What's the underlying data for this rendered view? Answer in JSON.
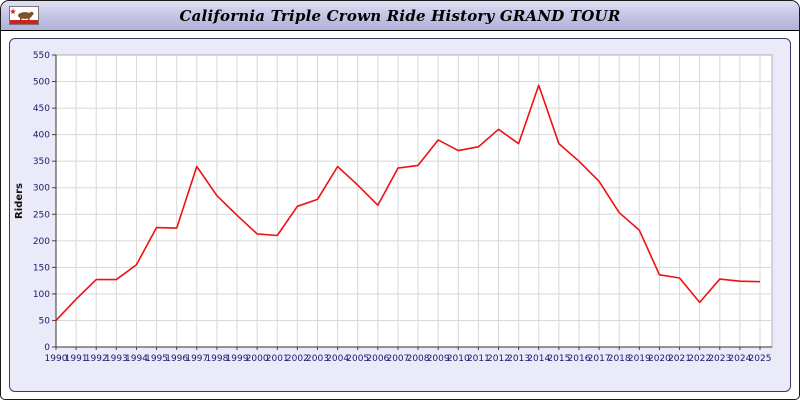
{
  "header": {
    "title": "California Triple Crown Ride History GRAND TOUR"
  },
  "colors": {
    "titlebar_bg": "#c2c2e4",
    "panel_bg": "#eaeaf8",
    "plot_bg": "#ffffff",
    "gridline": "#d8d8d8",
    "axis_label": "#1a1a6e",
    "line": "#ee1111"
  },
  "chart_data": {
    "type": "line",
    "title": "California Triple Crown Ride History GRAND TOUR",
    "xlabel": "",
    "ylabel": "Riders",
    "ylim": [
      0,
      550
    ],
    "ytick_step": 50,
    "grid": true,
    "legend": "none",
    "line_color": "#ee1111",
    "categories": [
      1990,
      1991,
      1992,
      1993,
      1994,
      1995,
      1996,
      1997,
      1998,
      1999,
      2000,
      2001,
      2002,
      2003,
      2004,
      2005,
      2006,
      2007,
      2008,
      2009,
      2010,
      2011,
      2012,
      2013,
      2014,
      2015,
      2016,
      2017,
      2018,
      2019,
      2020,
      2021,
      2022,
      2023,
      2024,
      2025
    ],
    "series": [
      {
        "name": "Riders",
        "values": [
          50,
          90,
          127,
          127,
          155,
          225,
          224,
          340,
          285,
          248,
          213,
          210,
          265,
          278,
          340,
          305,
          267,
          337,
          342,
          390,
          370,
          377,
          410,
          383,
          493,
          383,
          350,
          312,
          253,
          220,
          136,
          130,
          84,
          128,
          124,
          123
        ]
      }
    ]
  }
}
